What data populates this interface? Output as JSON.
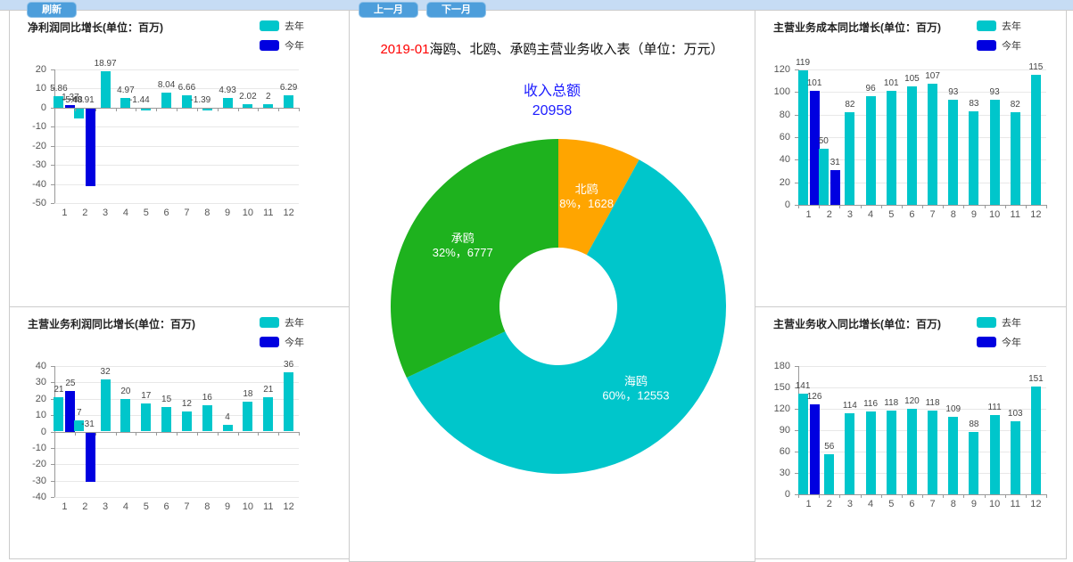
{
  "toolbar": {
    "refresh_label": "刷新",
    "prev_label": "上一月",
    "next_label": "下一月"
  },
  "colors": {
    "teal": "#00c6cb",
    "blue": "#0000e0",
    "green": "#1eb21e",
    "orange": "#ffa500",
    "accent_text_blue": "#1c1cff",
    "period_red": "#ff0000",
    "button_blue": "#4d9edb",
    "strip_blue": "#c6dcf4",
    "panel_border": "#cccccc"
  },
  "chart_data": [
    {
      "type": "bar",
      "title": "净利润同比增长(单位：百万)",
      "categories": [
        1,
        2,
        3,
        4,
        5,
        6,
        7,
        8,
        9,
        10,
        11,
        12
      ],
      "series": [
        {
          "name": "去年",
          "color": "teal",
          "values": [
            5.86,
            -5.48,
            18.97,
            4.97,
            -1.44,
            8.04,
            6.66,
            -1.39,
            4.93,
            2.02,
            2,
            6.29
          ]
        },
        {
          "name": "今年",
          "color": "blue",
          "values": [
            1.37,
            -40.91,
            null,
            null,
            null,
            null,
            null,
            null,
            null,
            null,
            null,
            null
          ]
        }
      ],
      "ylim": [
        -50,
        20
      ],
      "ystep": 10,
      "grid": true,
      "legend_position": "top-right"
    },
    {
      "type": "bar",
      "title": "主营业务利润同比增长(单位：百万)",
      "categories": [
        1,
        2,
        3,
        4,
        5,
        6,
        7,
        8,
        9,
        10,
        11,
        12
      ],
      "series": [
        {
          "name": "去年",
          "color": "teal",
          "values": [
            21,
            7,
            32,
            20,
            17,
            15,
            12,
            16,
            4,
            18,
            21,
            36
          ]
        },
        {
          "name": "今年",
          "color": "blue",
          "values": [
            25,
            -31,
            null,
            null,
            null,
            null,
            null,
            null,
            null,
            null,
            null,
            null
          ]
        }
      ],
      "ylim": [
        -40,
        40
      ],
      "ystep": 10,
      "grid": true,
      "legend_position": "top-right"
    },
    {
      "type": "bar",
      "title": "主营业务成本同比增长(单位：百万)",
      "categories": [
        1,
        2,
        3,
        4,
        5,
        6,
        7,
        8,
        9,
        10,
        11,
        12
      ],
      "series": [
        {
          "name": "去年",
          "color": "teal",
          "values": [
            119,
            50,
            82,
            96,
            101,
            105,
            107,
            93,
            83,
            93,
            82,
            115
          ]
        },
        {
          "name": "今年",
          "color": "blue",
          "values": [
            101,
            31,
            null,
            null,
            null,
            null,
            null,
            null,
            null,
            null,
            null,
            null
          ]
        }
      ],
      "ylim": [
        0,
        120
      ],
      "ystep": 20,
      "grid": true,
      "legend_position": "top-right"
    },
    {
      "type": "bar",
      "title": "主营业务收入同比增长(单位：百万)",
      "categories": [
        1,
        2,
        3,
        4,
        5,
        6,
        7,
        8,
        9,
        10,
        11,
        12
      ],
      "series": [
        {
          "name": "去年",
          "color": "teal",
          "values": [
            141,
            56,
            114,
            116,
            118,
            120,
            118,
            109,
            88,
            111,
            103,
            151
          ]
        },
        {
          "name": "今年",
          "color": "blue",
          "values": [
            126,
            null,
            null,
            null,
            null,
            null,
            null,
            null,
            null,
            null,
            null,
            null
          ]
        }
      ],
      "ylim": [
        0,
        180
      ],
      "ystep": 30,
      "grid": true,
      "legend_position": "top-right"
    },
    {
      "type": "pie",
      "title_period": "2019-01",
      "title": "海鸥、北鸥、承鸥主营业务收入表（单位：万元）",
      "total_label": "收入总额",
      "total_value": "20958",
      "start_angle": "top, clockwise",
      "slices": [
        {
          "name": "北鸥",
          "percent": 8,
          "value": 1628,
          "color": "orange"
        },
        {
          "name": "海鸥",
          "percent": 60,
          "value": 12553,
          "color": "teal"
        },
        {
          "name": "承鸥",
          "percent": 32,
          "value": 6777,
          "color": "green"
        }
      ]
    }
  ]
}
